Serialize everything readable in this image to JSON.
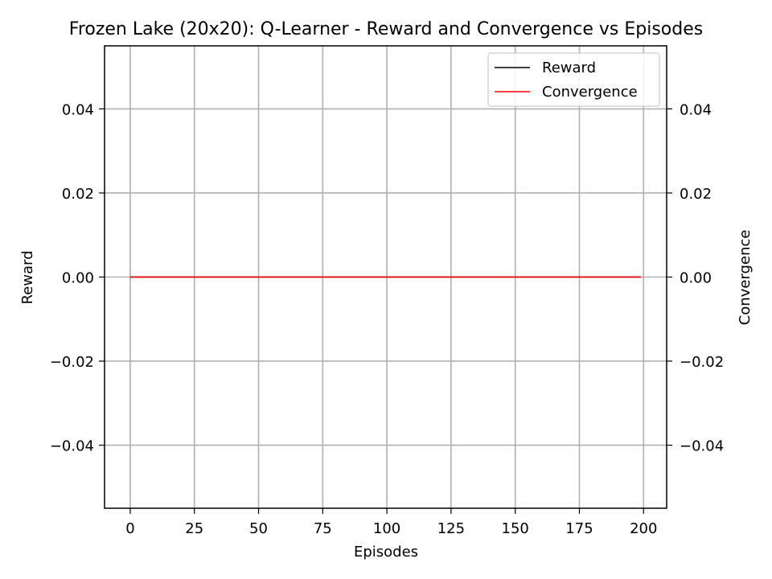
{
  "chart_data": {
    "type": "line",
    "title": "Frozen Lake (20x20): Q-Learner - Reward and Convergence vs Episodes",
    "xlabel": "Episodes",
    "ylabel": "Reward",
    "y2label": "Convergence",
    "xlim": [
      -10,
      209
    ],
    "ylim": [
      -0.055,
      0.055
    ],
    "y2lim": [
      -0.055,
      0.055
    ],
    "x_ticks": [
      0,
      25,
      50,
      75,
      100,
      125,
      150,
      175,
      200
    ],
    "y_ticks": [
      -0.04,
      -0.02,
      0.0,
      0.02,
      0.04
    ],
    "y_tick_labels": [
      "−0.04",
      "−0.02",
      "0.00",
      "0.02",
      "0.04"
    ],
    "y2_ticks": [
      -0.04,
      -0.02,
      0.0,
      0.02,
      0.04
    ],
    "y2_tick_labels": [
      "−0.04",
      "−0.02",
      "0.00",
      "0.02",
      "0.04"
    ],
    "grid": true,
    "legend_position": "top-right",
    "series": [
      {
        "name": "Reward",
        "axis": "left",
        "color": "#000000",
        "x_start": 0,
        "x_end": 199,
        "value": 0
      },
      {
        "name": "Convergence",
        "axis": "right",
        "color": "#ff0000",
        "x_start": 0,
        "x_end": 199,
        "value": 0
      }
    ]
  }
}
